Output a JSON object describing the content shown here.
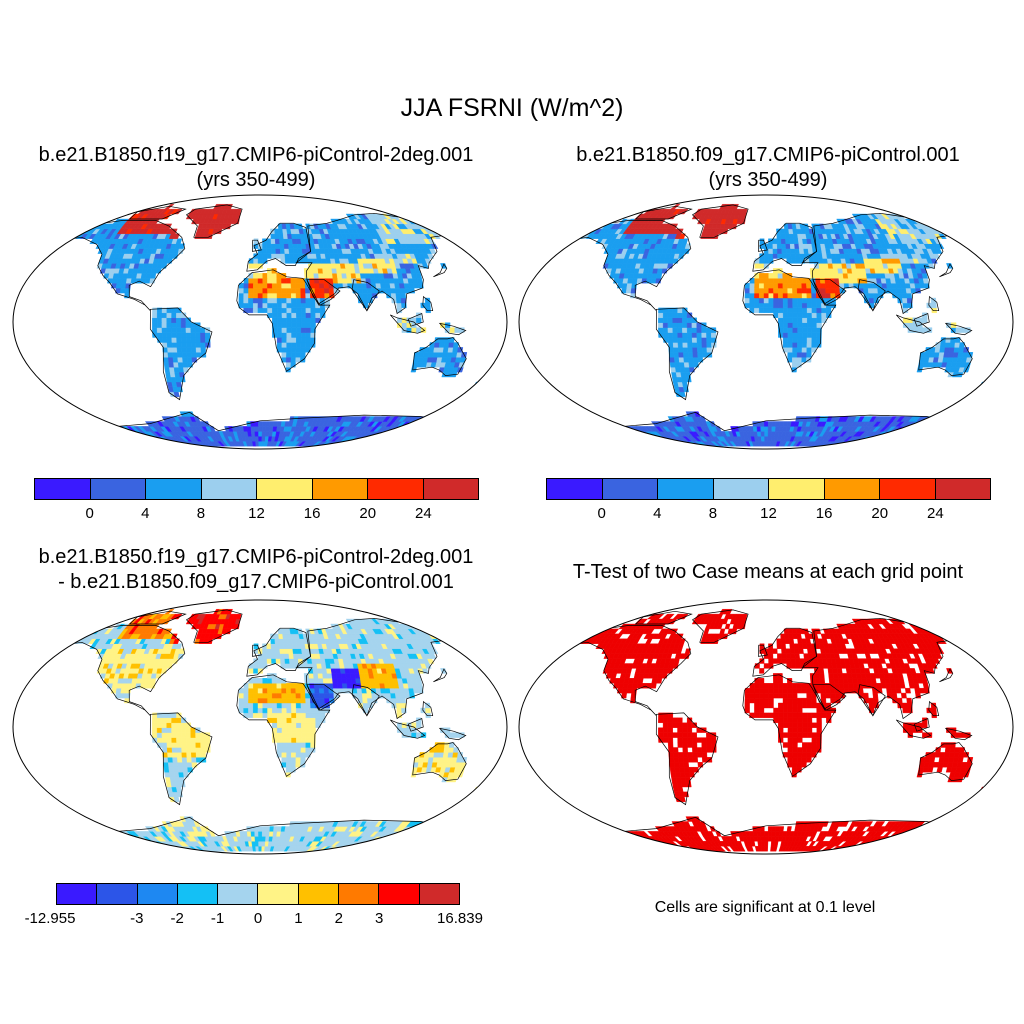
{
  "main_title": "JJA FSRNI (W/m^2)",
  "panels": {
    "case1": {
      "title_line1": "b.e21.B1850.f19_g17.CMIP6-piControl-2deg.001",
      "title_line2": "(yrs 350-499)"
    },
    "case2": {
      "title_line1": "b.e21.B1850.f09_g17.CMIP6-piControl.001",
      "title_line2": "(yrs 350-499)"
    },
    "diff": {
      "title_line1": "b.e21.B1850.f19_g17.CMIP6-piControl-2deg.001",
      "title_line2": "- b.e21.B1850.f09_g17.CMIP6-piControl.001"
    },
    "ttest": {
      "title": "T-Test of two Case means at each grid point",
      "note": "Cells are significant at 0.1 level"
    }
  },
  "legend_main": {
    "colors": [
      "#3a1aff",
      "#3a64e0",
      "#1a9ef0",
      "#9ccfee",
      "#ffee6e",
      "#ff9a00",
      "#ff2a00",
      "#d02a2a"
    ],
    "ticks": [
      "0",
      "4",
      "8",
      "12",
      "16",
      "20",
      "24"
    ]
  },
  "legend_diff": {
    "colors": [
      "#3a1aff",
      "#2c55e8",
      "#1e88f2",
      "#14c0f5",
      "#a5d4ee",
      "#fff386",
      "#ffc000",
      "#ff7a00",
      "#ff0000",
      "#d02a2a"
    ],
    "ticks": [
      "-12.955",
      "-3",
      "-2",
      "-1",
      "0",
      "1",
      "2",
      "3",
      "16.839"
    ]
  },
  "map_colors": {
    "land_default": "#3a64e0",
    "ocean": "#ffffff",
    "significant": "#ee0000"
  }
}
